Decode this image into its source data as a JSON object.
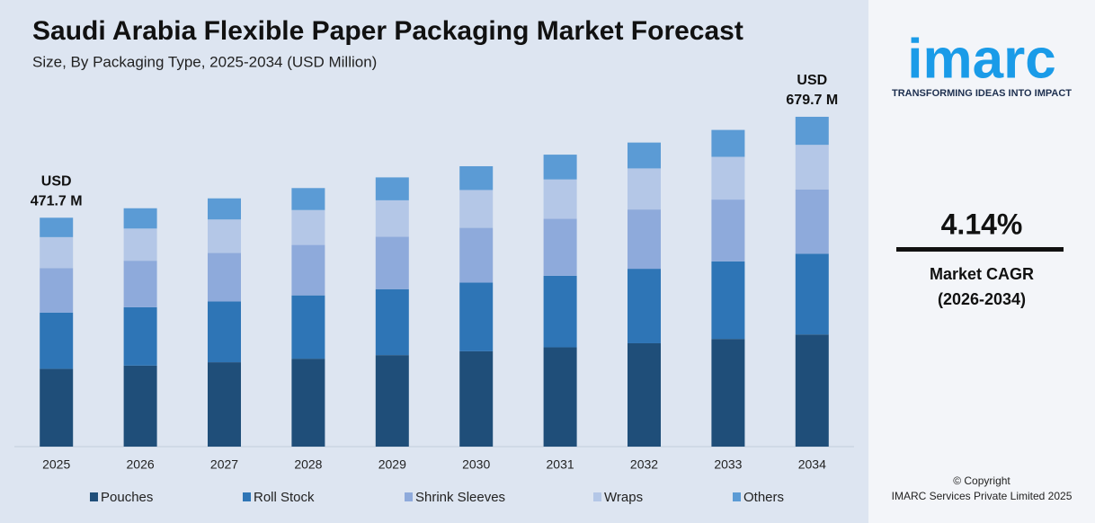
{
  "chart_data": {
    "type": "stacked_bar",
    "title": "Saudi Arabia Flexible Paper Packaging Market Forecast",
    "subtitle": "Size, By Packaging Type, 2025-2034 (USD Million)",
    "categories": [
      "2025",
      "2026",
      "2027",
      "2028",
      "2029",
      "2030",
      "2031",
      "2032",
      "2033",
      "2034"
    ],
    "series": [
      {
        "name": "Pouches",
        "color": "#1f4e79",
        "values": [
          160.4,
          167.0,
          173.9,
          181.2,
          188.6,
          196.5,
          204.7,
          213.0,
          221.9,
          231.1
        ]
      },
      {
        "name": "Roll Stock",
        "color": "#2e75b6",
        "values": [
          115.6,
          120.3,
          125.3,
          130.5,
          135.9,
          141.6,
          147.4,
          153.5,
          159.9,
          166.5
        ]
      },
      {
        "name": "Shrink Sleeves",
        "color": "#8eaadb",
        "values": [
          92.0,
          95.8,
          99.8,
          103.9,
          108.2,
          112.7,
          117.3,
          122.2,
          127.3,
          132.5
        ]
      },
      {
        "name": "Wraps",
        "color": "#b4c7e7",
        "values": [
          63.7,
          66.3,
          69.1,
          71.9,
          74.9,
          78.0,
          81.2,
          84.6,
          88.1,
          91.8
        ]
      },
      {
        "name": "Others",
        "color": "#5b9bd5",
        "values": [
          40.0,
          41.8,
          43.5,
          45.3,
          47.2,
          49.0,
          51.1,
          53.3,
          55.4,
          57.8
        ]
      }
    ],
    "total_labels": [
      [
        "USD",
        "471.7 M"
      ],
      null,
      null,
      null,
      null,
      null,
      null,
      null,
      null,
      [
        "USD",
        "679.7 M"
      ]
    ],
    "ylim": [
      0,
      700
    ],
    "grid": false,
    "legend": "bottom"
  },
  "sidebar": {
    "logo": "imarc",
    "tagline": "TRANSFORMING IDEAS INTO IMPACT",
    "cagr": "4.14%",
    "cagr_label": "Market CAGR",
    "cagr_period": "(2026-2034)",
    "copyright": "© Copyright",
    "company": "IMARC Services Private Limited 2025"
  }
}
